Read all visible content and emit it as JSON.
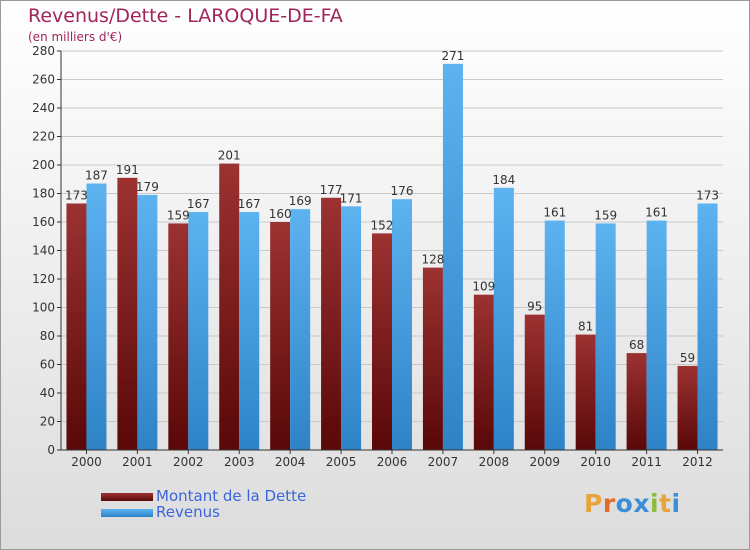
{
  "title": "Revenus/Dette - LAROQUE-DE-FA",
  "subtitle": "(en milliers d'€)",
  "logo": {
    "text": "Proxiti",
    "colors": [
      "#e8a33a",
      "#e06b2a",
      "#3a8fd8",
      "#3a8fd8",
      "#8bbf3a",
      "#e8a33a",
      "#3a8fd8"
    ]
  },
  "colors": {
    "dette": "#7a1a1a",
    "revenus": "#4aa3e6",
    "title": "#a0255a",
    "legend_text": "#3b66d9"
  },
  "chart_data": {
    "type": "bar",
    "title": "Revenus/Dette - LAROQUE-DE-FA",
    "subtitle": "(en milliers d'€)",
    "categories": [
      "2000",
      "2001",
      "2002",
      "2003",
      "2004",
      "2005",
      "2006",
      "2007",
      "2008",
      "2009",
      "2010",
      "2011",
      "2012"
    ],
    "series": [
      {
        "name": "Montant de la Dette",
        "color": "#7a1a1a",
        "values": [
          173,
          191,
          159,
          201,
          160,
          177,
          152,
          128,
          109,
          95,
          81,
          68,
          59
        ]
      },
      {
        "name": "Revenus",
        "color": "#4aa3e6",
        "values": [
          187,
          179,
          167,
          167,
          169,
          171,
          176,
          271,
          184,
          161,
          159,
          161,
          173
        ]
      }
    ],
    "ylim": [
      0,
      280
    ],
    "yticks": [
      0,
      20,
      40,
      60,
      80,
      100,
      120,
      140,
      160,
      180,
      200,
      220,
      240,
      260,
      280
    ],
    "grid": true,
    "legend": "bottom-left"
  }
}
